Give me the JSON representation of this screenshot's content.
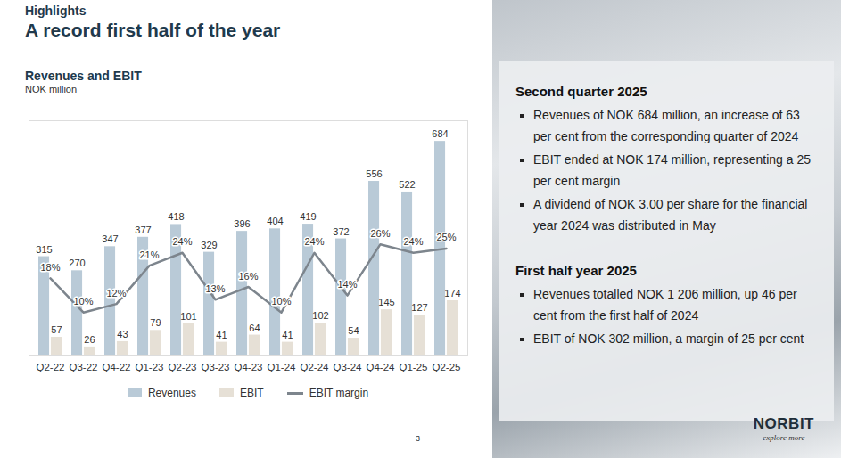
{
  "slide": {
    "section": "Highlights",
    "title": "A record first half of the year",
    "page": "3",
    "logo": "NORBIT",
    "tagline": "- explore more -",
    "panel": [
      {
        "heading": "Second quarter 2025",
        "bullets": [
          "Revenues of NOK 684 million, an increase of 63 per cent from the corresponding quarter of 2024",
          "EBIT ended at NOK 174 million, representing a 25 per cent margin",
          "A dividend of NOK 3.00 per share for the financial year 2024 was distributed in May"
        ]
      },
      {
        "heading": "First half year 2025",
        "bullets": [
          "Revenues totalled NOK 1 206 million, up 46 per cent from the first half of 2024",
          "EBIT of NOK 302 million, a margin of 25 per cent"
        ]
      }
    ]
  },
  "chart_data": {
    "type": "bar",
    "title": "Revenues and EBIT",
    "subtitle": "NOK million",
    "categories": [
      "Q2-22",
      "Q3-22",
      "Q4-22",
      "Q1-23",
      "Q2-23",
      "Q3-23",
      "Q4-23",
      "Q1-24",
      "Q2-24",
      "Q3-24",
      "Q4-24",
      "Q1-25",
      "Q2-25"
    ],
    "series": [
      {
        "name": "Revenues",
        "type": "bar",
        "color": "#b9cad7",
        "values": [
          315,
          270,
          347,
          377,
          418,
          329,
          396,
          404,
          419,
          372,
          556,
          522,
          684
        ]
      },
      {
        "name": "EBIT",
        "type": "bar",
        "color": "#e6e0d6",
        "values": [
          57,
          26,
          43,
          79,
          101,
          41,
          64,
          41,
          102,
          54,
          145,
          127,
          174
        ]
      },
      {
        "name": "EBIT margin",
        "type": "line",
        "axis": "y2",
        "color": "#7d858d",
        "values": [
          18,
          10,
          12,
          21,
          24,
          13,
          16,
          10,
          24,
          14,
          26,
          24,
          25
        ],
        "value_labels": [
          "18%",
          "10%",
          "12%",
          "21%",
          "24%",
          "13%",
          "16%",
          "10%",
          "24%",
          "14%",
          "26%",
          "24%",
          "25%"
        ]
      }
    ],
    "ylim": [
      0,
      750
    ],
    "y2lim": [
      0,
      55
    ],
    "data_labels": true,
    "tick_labels": "x",
    "legend": "bottom",
    "grid": false
  }
}
